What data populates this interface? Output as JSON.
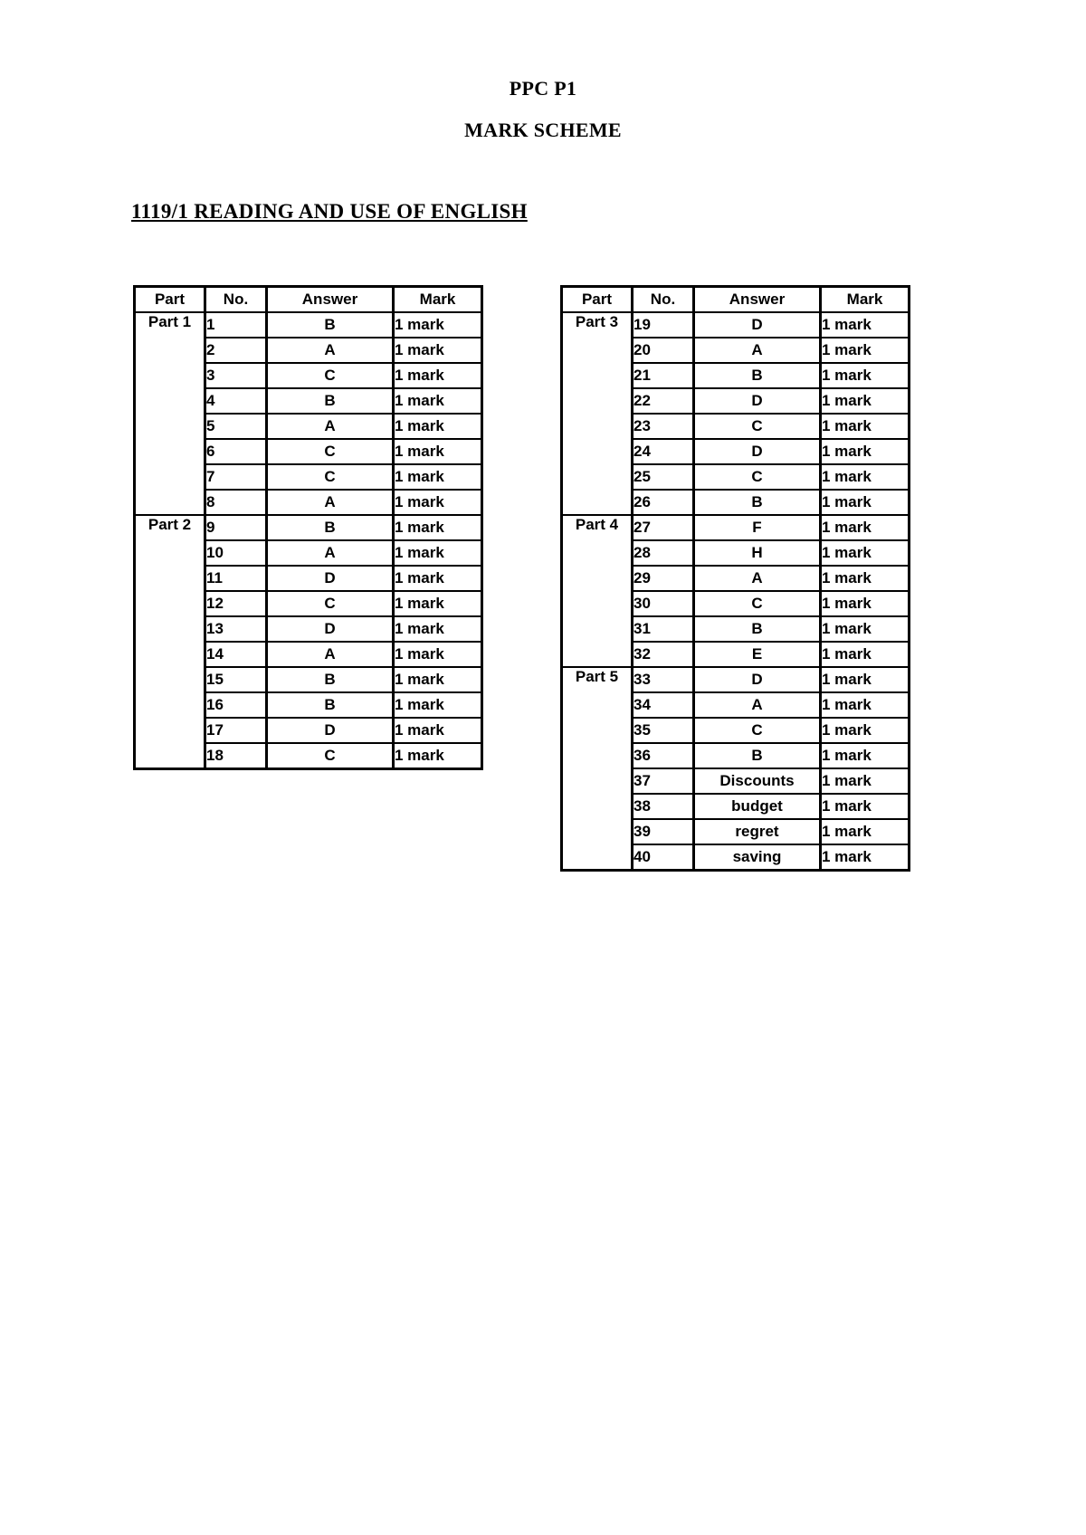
{
  "document": {
    "title": "PPC P1",
    "subtitle": "MARK SCHEME",
    "section_heading": "1119/1 READING AND USE OF ENGLISH"
  },
  "table_headers": [
    "Part",
    "No.",
    "Answer",
    "Mark"
  ],
  "answer_tables": [
    {
      "name": "left",
      "groups": [
        {
          "part": "Part 1",
          "rows": [
            [
              "1",
              "B",
              "1 mark"
            ],
            [
              "2",
              "A",
              "1 mark"
            ],
            [
              "3",
              "C",
              "1 mark"
            ],
            [
              "4",
              "B",
              "1 mark"
            ],
            [
              "5",
              "A",
              "1 mark"
            ],
            [
              "6",
              "C",
              "1 mark"
            ],
            [
              "7",
              "C",
              "1 mark"
            ],
            [
              "8",
              "A",
              "1 mark"
            ]
          ]
        },
        {
          "part": "Part 2",
          "rows": [
            [
              "9",
              "B",
              "1 mark"
            ],
            [
              "10",
              "A",
              "1 mark"
            ],
            [
              "11",
              "D",
              "1 mark"
            ],
            [
              "12",
              "C",
              "1 mark"
            ],
            [
              "13",
              "D",
              "1 mark"
            ],
            [
              "14",
              "A",
              "1 mark"
            ],
            [
              "15",
              "B",
              "1 mark"
            ],
            [
              "16",
              "B",
              "1 mark"
            ],
            [
              "17",
              "D",
              "1 mark"
            ],
            [
              "18",
              "C",
              "1 mark"
            ]
          ]
        }
      ]
    },
    {
      "name": "right",
      "groups": [
        {
          "part": "Part 3",
          "rows": [
            [
              "19",
              "D",
              "1 mark"
            ],
            [
              "20",
              "A",
              "1 mark"
            ],
            [
              "21",
              "B",
              "1 mark"
            ],
            [
              "22",
              "D",
              "1 mark"
            ],
            [
              "23",
              "C",
              "1 mark"
            ],
            [
              "24",
              "D",
              "1 mark"
            ],
            [
              "25",
              "C",
              "1 mark"
            ],
            [
              "26",
              "B",
              "1 mark"
            ]
          ]
        },
        {
          "part": "Part 4",
          "rows": [
            [
              "27",
              "F",
              "1 mark"
            ],
            [
              "28",
              "H",
              "1 mark"
            ],
            [
              "29",
              "A",
              "1 mark"
            ],
            [
              "30",
              "C",
              "1 mark"
            ],
            [
              "31",
              "B",
              "1 mark"
            ],
            [
              "32",
              "E",
              "1 mark"
            ]
          ]
        },
        {
          "part": "Part 5",
          "rows": [
            [
              "33",
              "D",
              "1 mark"
            ],
            [
              "34",
              "A",
              "1 mark"
            ],
            [
              "35",
              "C",
              "1 mark"
            ],
            [
              "36",
              "B",
              "1 mark"
            ],
            [
              "37",
              "Discounts",
              "1 mark"
            ],
            [
              "38",
              "budget",
              "1 mark"
            ],
            [
              "39",
              "regret",
              "1 mark"
            ],
            [
              "40",
              "saving",
              "1 mark"
            ]
          ]
        }
      ]
    }
  ]
}
